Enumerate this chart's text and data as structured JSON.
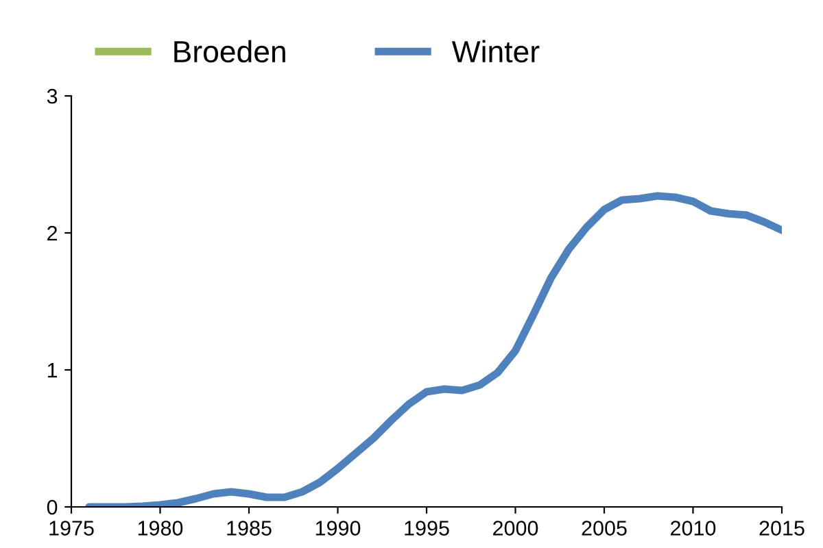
{
  "chart_data": {
    "type": "line",
    "x": [
      1976,
      1977,
      1978,
      1979,
      1980,
      1981,
      1982,
      1983,
      1984,
      1985,
      1986,
      1987,
      1988,
      1989,
      1990,
      1991,
      1992,
      1993,
      1994,
      1995,
      1996,
      1997,
      1998,
      1999,
      2000,
      2001,
      2002,
      2003,
      2004,
      2005,
      2006,
      2007,
      2008,
      2009,
      2010,
      2011,
      2012,
      2013,
      2014,
      2015
    ],
    "series": [
      {
        "name": "Broeden",
        "color": "#9bbb59",
        "values": [
          null,
          null,
          null,
          null,
          null,
          null,
          null,
          null,
          null,
          null,
          null,
          null,
          null,
          null,
          null,
          null,
          null,
          null,
          null,
          null,
          null,
          null,
          null,
          null,
          null,
          null,
          null,
          null,
          null,
          null,
          null,
          null,
          null,
          null,
          null,
          null,
          null,
          null,
          null,
          null
        ]
      },
      {
        "name": "Winter",
        "color": "#4f81bd",
        "values": [
          0.0,
          0.0,
          0.0,
          0.005,
          0.015,
          0.03,
          0.06,
          0.095,
          0.11,
          0.095,
          0.07,
          0.07,
          0.11,
          0.18,
          0.28,
          0.39,
          0.5,
          0.63,
          0.75,
          0.84,
          0.86,
          0.85,
          0.89,
          0.98,
          1.14,
          1.4,
          1.67,
          1.88,
          2.04,
          2.17,
          2.24,
          2.25,
          2.27,
          2.26,
          2.23,
          2.16,
          2.14,
          2.13,
          2.08,
          2.02
        ]
      }
    ],
    "xlim": [
      1975,
      2015
    ],
    "xticks": [
      1975,
      1980,
      1985,
      1990,
      1995,
      2000,
      2005,
      2010,
      2015
    ],
    "ylim": [
      0,
      3
    ],
    "yticks": [
      0,
      1,
      2,
      3
    ],
    "grid": false,
    "legend": "top left",
    "marker": "none",
    "line_style": "solid"
  }
}
